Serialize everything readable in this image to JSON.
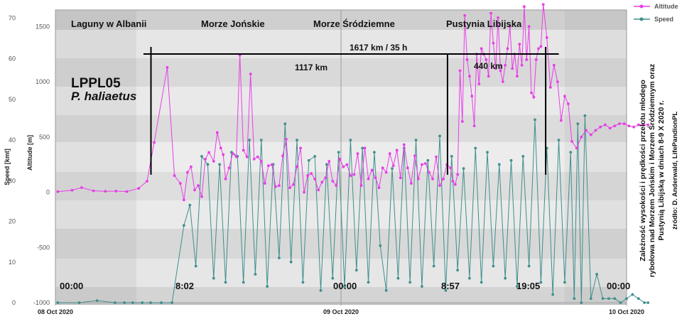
{
  "chart_data": {
    "type": "line",
    "species_code": "LPPL05",
    "species_name": "P. haliaetus",
    "right_axis_label": "Altitude [m]",
    "left_axis_label": "Speed [kmt]",
    "speed_ticks": [
      "0",
      "10",
      "20",
      "30",
      "40",
      "50",
      "60",
      "70"
    ],
    "altitude_ticks": [
      "-1000",
      "-500",
      "0",
      "500",
      "1000",
      "1500"
    ],
    "speed_range": [
      0,
      72
    ],
    "altitude_range": [
      -1000,
      1650
    ],
    "x_range": [
      0,
      48
    ],
    "date_labels": [
      {
        "x": 0,
        "label": "08 Oct 2020"
      },
      {
        "x": 24,
        "label": "09 Oct 2020"
      },
      {
        "x": 48,
        "label": "10 Oct 2020"
      }
    ],
    "regions": [
      {
        "x": 0,
        "label": "Laguny w Albanii"
      },
      {
        "x": 11,
        "label": "Morze Jońskie"
      },
      {
        "x": 21,
        "label": "Morze Śródziemne"
      },
      {
        "x": 32.5,
        "label": "Pustynia Libijska"
      }
    ],
    "time_labels": [
      {
        "x": 0,
        "label": "00:00"
      },
      {
        "x": 8.03,
        "label": "8:02"
      },
      {
        "x": 24,
        "label": "00:00"
      },
      {
        "x": 32.95,
        "label": "8:57"
      },
      {
        "x": 43.08,
        "label": "19:05"
      },
      {
        "x": 48,
        "label": "00:00"
      }
    ],
    "distances": {
      "total": "1617 km  / 35 h",
      "leg1": "1117 km",
      "leg2": "440 km"
    },
    "series": [
      {
        "name": "Altitude",
        "color": "#e83ee8",
        "axis": "altitude",
        "x": [
          0.2,
          1.4,
          2.2,
          3.2,
          4.2,
          5.1,
          6.0,
          7.0,
          7.7,
          8.3,
          9.4,
          10.0,
          10.5,
          10.8,
          11.1,
          11.4,
          11.7,
          12.0,
          12.3,
          12.6,
          12.9,
          13.3,
          13.6,
          13.9,
          14.1,
          14.3,
          14.6,
          14.9,
          15.2,
          15.5,
          15.8,
          16.1,
          16.4,
          16.7,
          17.0,
          17.3,
          17.6,
          17.9,
          18.2,
          18.5,
          18.8,
          19.1,
          19.4,
          19.7,
          20.0,
          20.3,
          20.6,
          20.9,
          21.2,
          21.5,
          21.8,
          22.1,
          22.4,
          22.7,
          23.0,
          23.3,
          23.6,
          23.9,
          24.2,
          24.5,
          24.8,
          25.1,
          25.4,
          25.7,
          26.0,
          26.3,
          26.6,
          26.9,
          27.2,
          27.5,
          27.8,
          28.1,
          28.4,
          28.7,
          29.0,
          29.3,
          29.6,
          29.9,
          30.2,
          30.5,
          30.8,
          31.1,
          31.4,
          31.7,
          32.0,
          32.3,
          32.6,
          32.9,
          33.2,
          33.4,
          33.6,
          33.8,
          34.0,
          34.2,
          34.4,
          34.6,
          34.8,
          35.0,
          35.2,
          35.4,
          35.6,
          35.8,
          36.0,
          36.2,
          36.4,
          36.6,
          36.8,
          37.0,
          37.2,
          37.4,
          37.6,
          37.8,
          38.0,
          38.2,
          38.4,
          38.6,
          38.8,
          39.0,
          39.2,
          39.4,
          39.6,
          39.8,
          40.0,
          40.2,
          40.4,
          40.6,
          40.8,
          41.0,
          41.3,
          41.6,
          41.9,
          42.2,
          42.5,
          42.8,
          43.1,
          43.4,
          43.8,
          44.2,
          44.6,
          45.0,
          45.4,
          45.8,
          46.2,
          46.6,
          47.0,
          47.4,
          47.8,
          48.2,
          48.6,
          49.0,
          49.4,
          49.8
        ],
        "y": [
          5,
          18,
          42,
          12,
          8,
          10,
          6,
          35,
          100,
          450,
          1130,
          150,
          80,
          -70,
          180,
          230,
          20,
          60,
          -40,
          300,
          360,
          280,
          540,
          400,
          340,
          120,
          220,
          350,
          320,
          1240,
          380,
          320,
          1070,
          300,
          320,
          280,
          80,
          240,
          250,
          50,
          60,
          330,
          480,
          40,
          70,
          230,
          400,
          0,
          150,
          170,
          120,
          20,
          90,
          130,
          280,
          100,
          60,
          300,
          230,
          250,
          150,
          160,
          350,
          60,
          400,
          120,
          200,
          130,
          40,
          220,
          180,
          350,
          240,
          380,
          130,
          430,
          220,
          80,
          330,
          120,
          250,
          260,
          180,
          120,
          320,
          60,
          120,
          250,
          220,
          100,
          70,
          160,
          1100,
          640,
          1600,
          1200,
          1050,
          870,
          600,
          1250,
          980,
          1300,
          1250,
          1200,
          1050,
          1620,
          1350,
          1120,
          1580,
          1100,
          1000,
          1150,
          1300,
          1500,
          1120,
          1250,
          1050,
          1340,
          1150,
          1680,
          1200,
          1500,
          900,
          860,
          1200,
          1300,
          1320,
          1700,
          1400,
          950,
          1150,
          1000,
          650,
          870,
          800,
          460,
          400,
          500,
          560,
          520,
          560,
          590,
          610,
          580,
          600,
          620,
          620,
          600,
          590,
          610,
          610,
          610
        ]
      },
      {
        "name": "Speed",
        "color": "#3f8f8c",
        "axis": "speed",
        "x": [
          0.2,
          2.0,
          3.5,
          5.0,
          5.8,
          6.5,
          7.3,
          8.0,
          8.9,
          9.8,
          10.8,
          11.3,
          11.8,
          12.3,
          12.8,
          13.3,
          13.8,
          14.3,
          14.8,
          15.3,
          15.8,
          16.3,
          16.8,
          17.3,
          17.8,
          18.3,
          18.8,
          19.3,
          19.8,
          20.3,
          20.8,
          21.3,
          21.8,
          22.3,
          22.8,
          23.3,
          23.8,
          24.3,
          24.8,
          25.3,
          25.8,
          26.3,
          26.8,
          27.3,
          27.8,
          28.3,
          28.8,
          29.3,
          29.8,
          30.3,
          30.8,
          31.3,
          31.8,
          32.3,
          32.8,
          33.3,
          33.8,
          34.3,
          34.8,
          35.3,
          35.8,
          36.3,
          36.8,
          37.3,
          37.8,
          38.3,
          38.8,
          39.3,
          39.8,
          40.3,
          40.8,
          41.3,
          41.8,
          42.3,
          42.8,
          43.3,
          43.6,
          43.9,
          44.2,
          44.5,
          45.0,
          45.5,
          46.0,
          46.5,
          47.0,
          47.5,
          48.0,
          48.5,
          49.0,
          49.5,
          49.8
        ],
        "y": [
          0,
          0,
          0.5,
          0,
          0,
          0,
          0,
          0,
          0,
          0,
          19,
          24,
          9,
          36,
          34,
          6,
          34,
          5,
          37,
          36,
          5,
          40,
          7,
          40,
          4,
          34,
          11,
          44,
          10,
          40,
          5,
          35,
          36,
          3,
          34,
          6,
          37,
          4,
          40,
          8,
          38,
          5,
          37,
          14,
          3,
          33,
          6,
          38,
          5,
          40,
          4,
          35,
          9,
          41,
          3,
          36,
          8,
          33,
          6,
          38,
          5,
          37,
          9,
          34,
          6,
          35,
          4,
          36,
          9,
          45,
          5,
          38,
          2,
          40,
          5,
          37,
          1,
          44,
          0,
          46,
          1,
          7,
          1,
          1,
          1,
          0,
          1,
          2,
          1,
          0,
          0
        ],
        "note": "Speed values for 8 Oct night set near 0; main flight points roughly follow the plot"
      }
    ]
  },
  "legend": {
    "altitude_label": "Altitude",
    "speed_label": "Speed"
  },
  "side_note": {
    "line1": "Zależność wysokości i prędkości przelotu młodego",
    "line2": "rybołowa nad Morzem Jońskim i Morzem Śródziemnym oraz",
    "line3": "Pustynią Libijską w dniach 8-9 X 2020 r.",
    "credit": "źródło: D. Anderwald, LifePandionPL"
  }
}
